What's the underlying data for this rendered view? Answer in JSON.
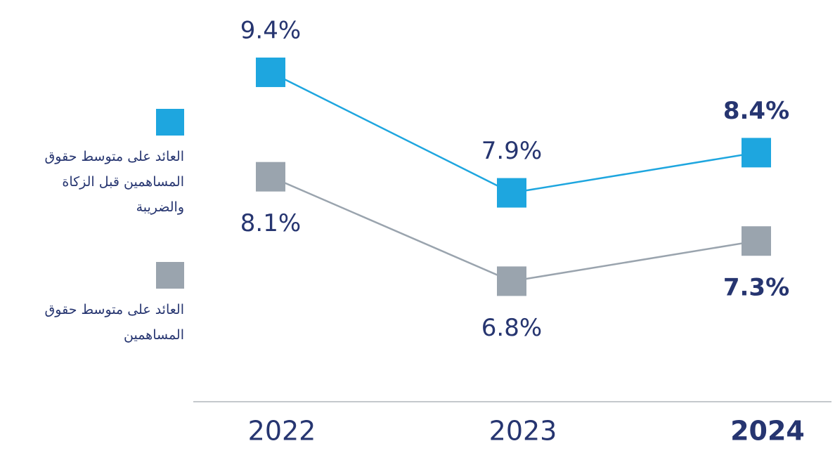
{
  "chart_data": {
    "type": "line",
    "categories": [
      "2022",
      "2023",
      "2024"
    ],
    "series": [
      {
        "name": "العائد على متوسط حقوق المساهمين قبل الزكاة والضريبة",
        "color": "#1ea6df",
        "values": [
          9.4,
          7.9,
          8.4
        ],
        "value_labels": [
          "9.4%",
          "7.9%",
          "8.4%"
        ]
      },
      {
        "name": "العائد على متوسط حقوق المساهمين",
        "color": "#9aa4ae",
        "values": [
          8.1,
          6.8,
          7.3
        ],
        "value_labels": [
          "8.1%",
          "6.8%",
          "7.3%"
        ]
      }
    ],
    "ylim": [
      5.3,
      10.3
    ]
  }
}
